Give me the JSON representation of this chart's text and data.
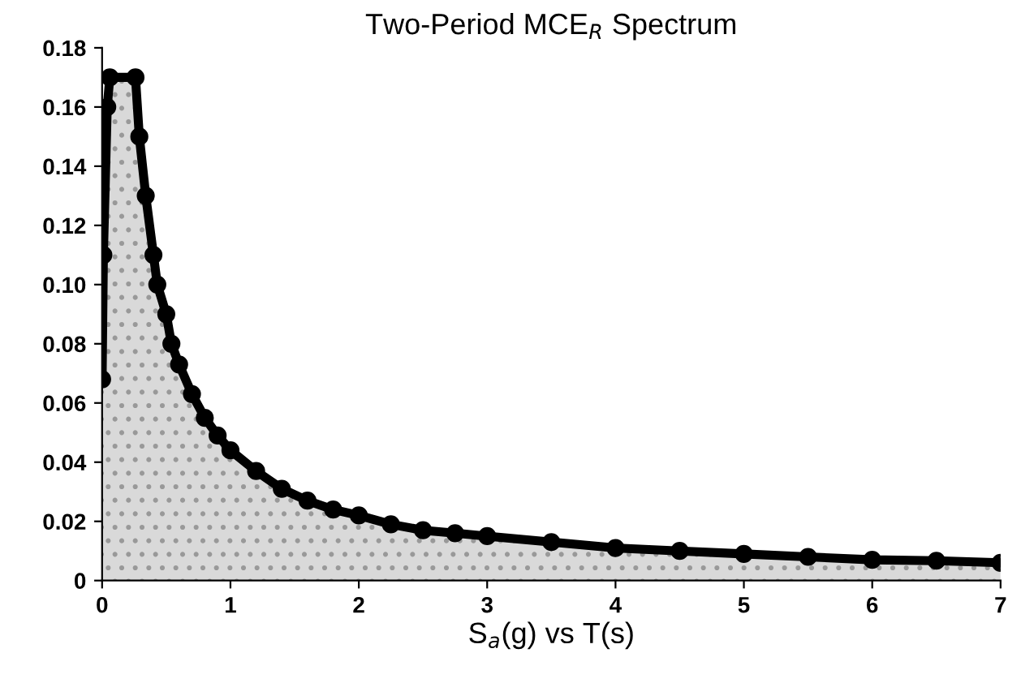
{
  "chart_data": {
    "type": "area",
    "title": "Two-Period MCE$_{R}$ Spectrum",
    "xlabel": "S$_{a}$(g) vs T(s)",
    "x": [
      0,
      0.01,
      0.04,
      0.06,
      0.26,
      0.29,
      0.34,
      0.4,
      0.43,
      0.5,
      0.54,
      0.6,
      0.7,
      0.8,
      0.9,
      1.0,
      1.2,
      1.4,
      1.6,
      1.8,
      2.0,
      2.25,
      2.5,
      2.75,
      3.0,
      3.5,
      4.0,
      4.5,
      5.0,
      5.5,
      6.0,
      6.5,
      7.0
    ],
    "series": [
      {
        "color": "#000000",
        "values": [
          0.068,
          0.11,
          0.16,
          0.17,
          0.17,
          0.15,
          0.13,
          0.11,
          0.1,
          0.09,
          0.08,
          0.073,
          0.063,
          0.055,
          0.049,
          0.044,
          0.037,
          0.031,
          0.027,
          0.024,
          0.022,
          0.019,
          0.017,
          0.016,
          0.015,
          0.013,
          0.011,
          0.01,
          0.009,
          0.008,
          0.007,
          0.0067,
          0.006
        ]
      }
    ],
    "xlim": [
      0,
      7
    ],
    "ylim": [
      0,
      0.18
    ],
    "xticks": [
      0,
      1,
      2,
      3,
      4,
      5,
      6,
      7
    ],
    "yticks": [
      0,
      0.02,
      0.04,
      0.06,
      0.08,
      {
        "value": 0.1,
        "label": "0.10"
      },
      0.12,
      0.14,
      0.16,
      0.18
    ],
    "marker": "circle",
    "grid": false,
    "legend": false
  }
}
